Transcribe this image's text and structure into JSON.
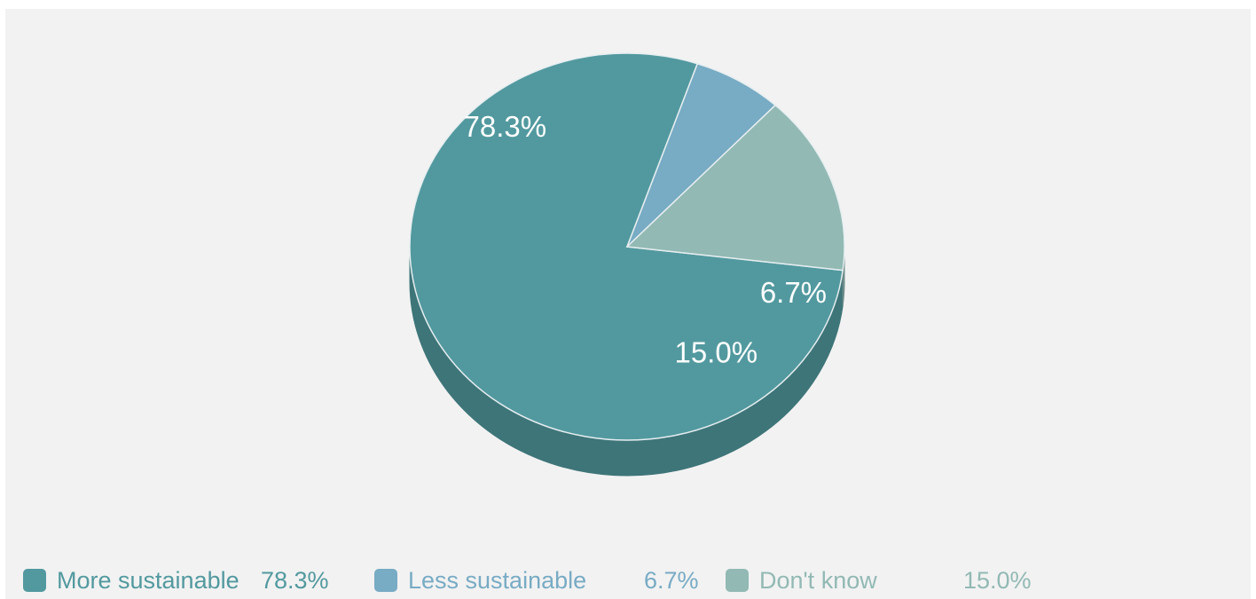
{
  "chart_data": {
    "type": "pie",
    "slices": [
      {
        "label": "More sustainable",
        "value": 78.3,
        "display": "78.3%",
        "color": "#52999f",
        "side_color": "#3e7579"
      },
      {
        "label": "Less sustainable",
        "value": 6.7,
        "display": "6.7%",
        "color": "#78abc4",
        "side_color": "#5c8296"
      },
      {
        "label": "Don't know",
        "value": 15.0,
        "display": "15.0%",
        "color": "#92b9b4",
        "side_color": "#6f8d89"
      }
    ],
    "legend_placement": "bottom-left"
  }
}
